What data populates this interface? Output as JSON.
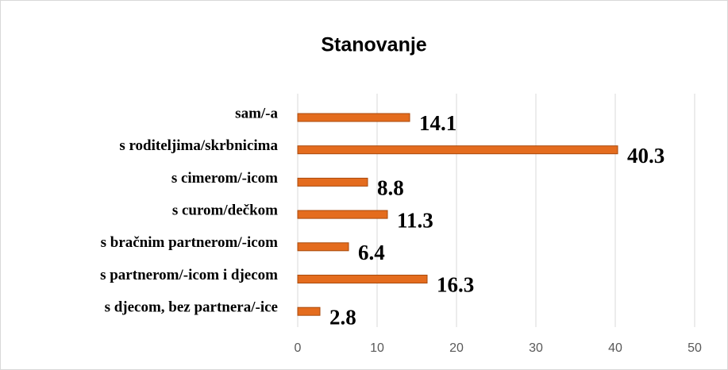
{
  "chart_data": {
    "type": "barh",
    "title": "Stanovanje",
    "categories": [
      "sam/-a",
      "s roditeljima/skrbnicima",
      "s cimerom/-icom",
      "s curom/dečkom",
      "s bračnim partnerom/-icom",
      "s partnerom/-icom i djecom",
      "s djecom, bez partnera/-ice"
    ],
    "values": [
      14.1,
      40.3,
      8.8,
      11.3,
      6.4,
      16.3,
      2.8
    ],
    "color": "#e46c1e",
    "xlim": [
      0,
      50
    ],
    "xticks": [
      0,
      10,
      20,
      30,
      40,
      50
    ],
    "grid": true
  }
}
